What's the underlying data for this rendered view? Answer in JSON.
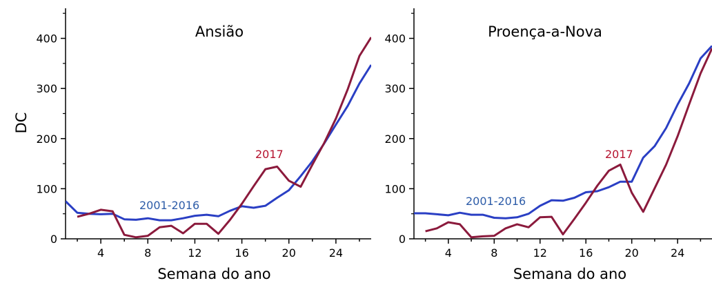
{
  "chart_data": [
    {
      "type": "line",
      "title": "Ansião",
      "xlabel": "Semana do ano",
      "ylabel": "DC",
      "xlim": [
        1,
        27
      ],
      "ylim": [
        0,
        460
      ],
      "xticks": [
        4,
        8,
        12,
        16,
        20,
        24
      ],
      "yticks": [
        0,
        100,
        200,
        300,
        400
      ],
      "series": [
        {
          "name": "2001-2016",
          "color": "#2a3fc4",
          "x": [
            1,
            2,
            3,
            4,
            5,
            6,
            7,
            8,
            9,
            10,
            11,
            12,
            13,
            14,
            15,
            16,
            17,
            18,
            19,
            20,
            21,
            22,
            23,
            24,
            25,
            26,
            27
          ],
          "y": [
            75,
            52,
            50,
            49,
            50,
            39,
            38,
            41,
            37,
            37,
            41,
            46,
            48,
            45,
            56,
            65,
            62,
            66,
            82,
            97,
            125,
            155,
            190,
            228,
            265,
            310,
            347
          ]
        },
        {
          "name": "2017",
          "color": "#8b1a3c",
          "x": [
            2,
            3,
            4,
            5,
            6,
            7,
            8,
            9,
            10,
            11,
            12,
            13,
            14,
            15,
            16,
            17,
            18,
            19,
            20,
            21,
            22,
            23,
            24,
            25,
            26,
            27
          ],
          "y": [
            44,
            50,
            58,
            55,
            8,
            3,
            6,
            23,
            26,
            11,
            30,
            30,
            10,
            38,
            70,
            105,
            139,
            144,
            116,
            104,
            148,
            191,
            240,
            298,
            365,
            402
          ]
        }
      ]
    },
    {
      "type": "line",
      "title": "Proença-a-Nova",
      "xlabel": "Semana do ano",
      "ylabel": "",
      "xlim": [
        1,
        27
      ],
      "ylim": [
        0,
        460
      ],
      "xticks": [
        4,
        8,
        12,
        16,
        20,
        24
      ],
      "yticks": [
        0,
        100,
        200,
        300,
        400
      ],
      "series": [
        {
          "name": "2001-2016",
          "color": "#2a3fc4",
          "x": [
            1,
            2,
            3,
            4,
            5,
            6,
            7,
            8,
            9,
            10,
            11,
            12,
            13,
            14,
            15,
            16,
            17,
            18,
            19,
            20,
            21,
            22,
            23,
            24,
            25,
            26,
            27
          ],
          "y": [
            51,
            51,
            49,
            47,
            52,
            48,
            48,
            42,
            41,
            43,
            50,
            66,
            77,
            76,
            82,
            93,
            95,
            103,
            114,
            114,
            162,
            185,
            221,
            268,
            310,
            360,
            385
          ]
        },
        {
          "name": "2017",
          "color": "#8b1a3c",
          "x": [
            2,
            3,
            4,
            5,
            6,
            7,
            8,
            9,
            10,
            11,
            12,
            13,
            14,
            15,
            16,
            17,
            18,
            19,
            20,
            21,
            22,
            23,
            24,
            25,
            26,
            27
          ],
          "y": [
            15,
            21,
            33,
            29,
            3,
            5,
            6,
            21,
            29,
            23,
            43,
            44,
            9,
            40,
            72,
            106,
            136,
            148,
            92,
            54,
            101,
            148,
            205,
            268,
            330,
            380
          ]
        }
      ]
    }
  ]
}
